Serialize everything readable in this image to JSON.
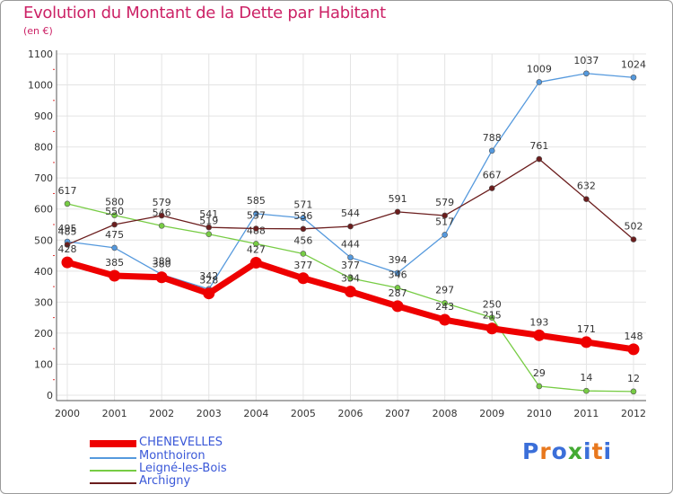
{
  "title": "Evolution du Montant de la Dette par Habitant",
  "subtitle": "(en €)",
  "logo": {
    "letters": [
      "P",
      "r",
      "o",
      "x",
      "i",
      "t",
      "i"
    ],
    "colors": [
      "#3b6fd9",
      "#e8781e",
      "#3b6fd9",
      "#44aa33",
      "#3b6fd9",
      "#e8781e",
      "#3b6fd9"
    ]
  },
  "chart_data": {
    "type": "line",
    "x": [
      "2000",
      "2001",
      "2002",
      "2003",
      "2004",
      "2005",
      "2006",
      "2007",
      "2008",
      "2009",
      "2010",
      "2011",
      "2012"
    ],
    "ylim": [
      0,
      1100
    ],
    "yticks": [
      "0",
      "100",
      "200",
      "300",
      "400",
      "500",
      "600",
      "700",
      "800",
      "900",
      "1000",
      "1100"
    ],
    "grid": true,
    "legend_position": "bottom-left",
    "series": [
      {
        "name": "CHENEVELLES",
        "color": "#ee0000",
        "thick": true,
        "values": [
          428,
          385,
          380,
          328,
          427,
          377,
          334,
          287,
          243,
          215,
          193,
          171,
          148
        ],
        "labels": [
          "428",
          "385",
          "380",
          "328",
          "427",
          "377",
          "334",
          "287",
          "243",
          "215",
          "193",
          "171",
          "148"
        ]
      },
      {
        "name": "Monthoiron",
        "color": "#5599dd",
        "thick": false,
        "values": [
          495,
          475,
          389,
          342,
          585,
          571,
          444,
          394,
          517,
          788,
          1009,
          1037,
          1024
        ],
        "labels": [
          "495",
          "475",
          "389",
          "342",
          "585",
          "571",
          "444",
          "394",
          "517",
          "788",
          "1009",
          "1037",
          "1024"
        ]
      },
      {
        "name": "Leigné-les-Bois",
        "color": "#77cc44",
        "thick": false,
        "values": [
          617,
          580,
          546,
          519,
          488,
          456,
          377,
          346,
          297,
          250,
          29,
          14,
          12
        ],
        "labels": [
          "617",
          "580",
          "546",
          "519",
          "488",
          "456",
          "377",
          "346",
          "297",
          "250",
          "29",
          "14",
          "12"
        ]
      },
      {
        "name": "Archigny",
        "color": "#6b1d1d",
        "thick": false,
        "values": [
          485,
          550,
          579,
          541,
          537,
          536,
          544,
          591,
          579,
          667,
          761,
          632,
          502
        ],
        "labels": [
          "485",
          "550",
          "579",
          "541",
          "537",
          "536",
          "544",
          "591",
          "579",
          "667",
          "761",
          "632",
          "502"
        ]
      }
    ]
  }
}
